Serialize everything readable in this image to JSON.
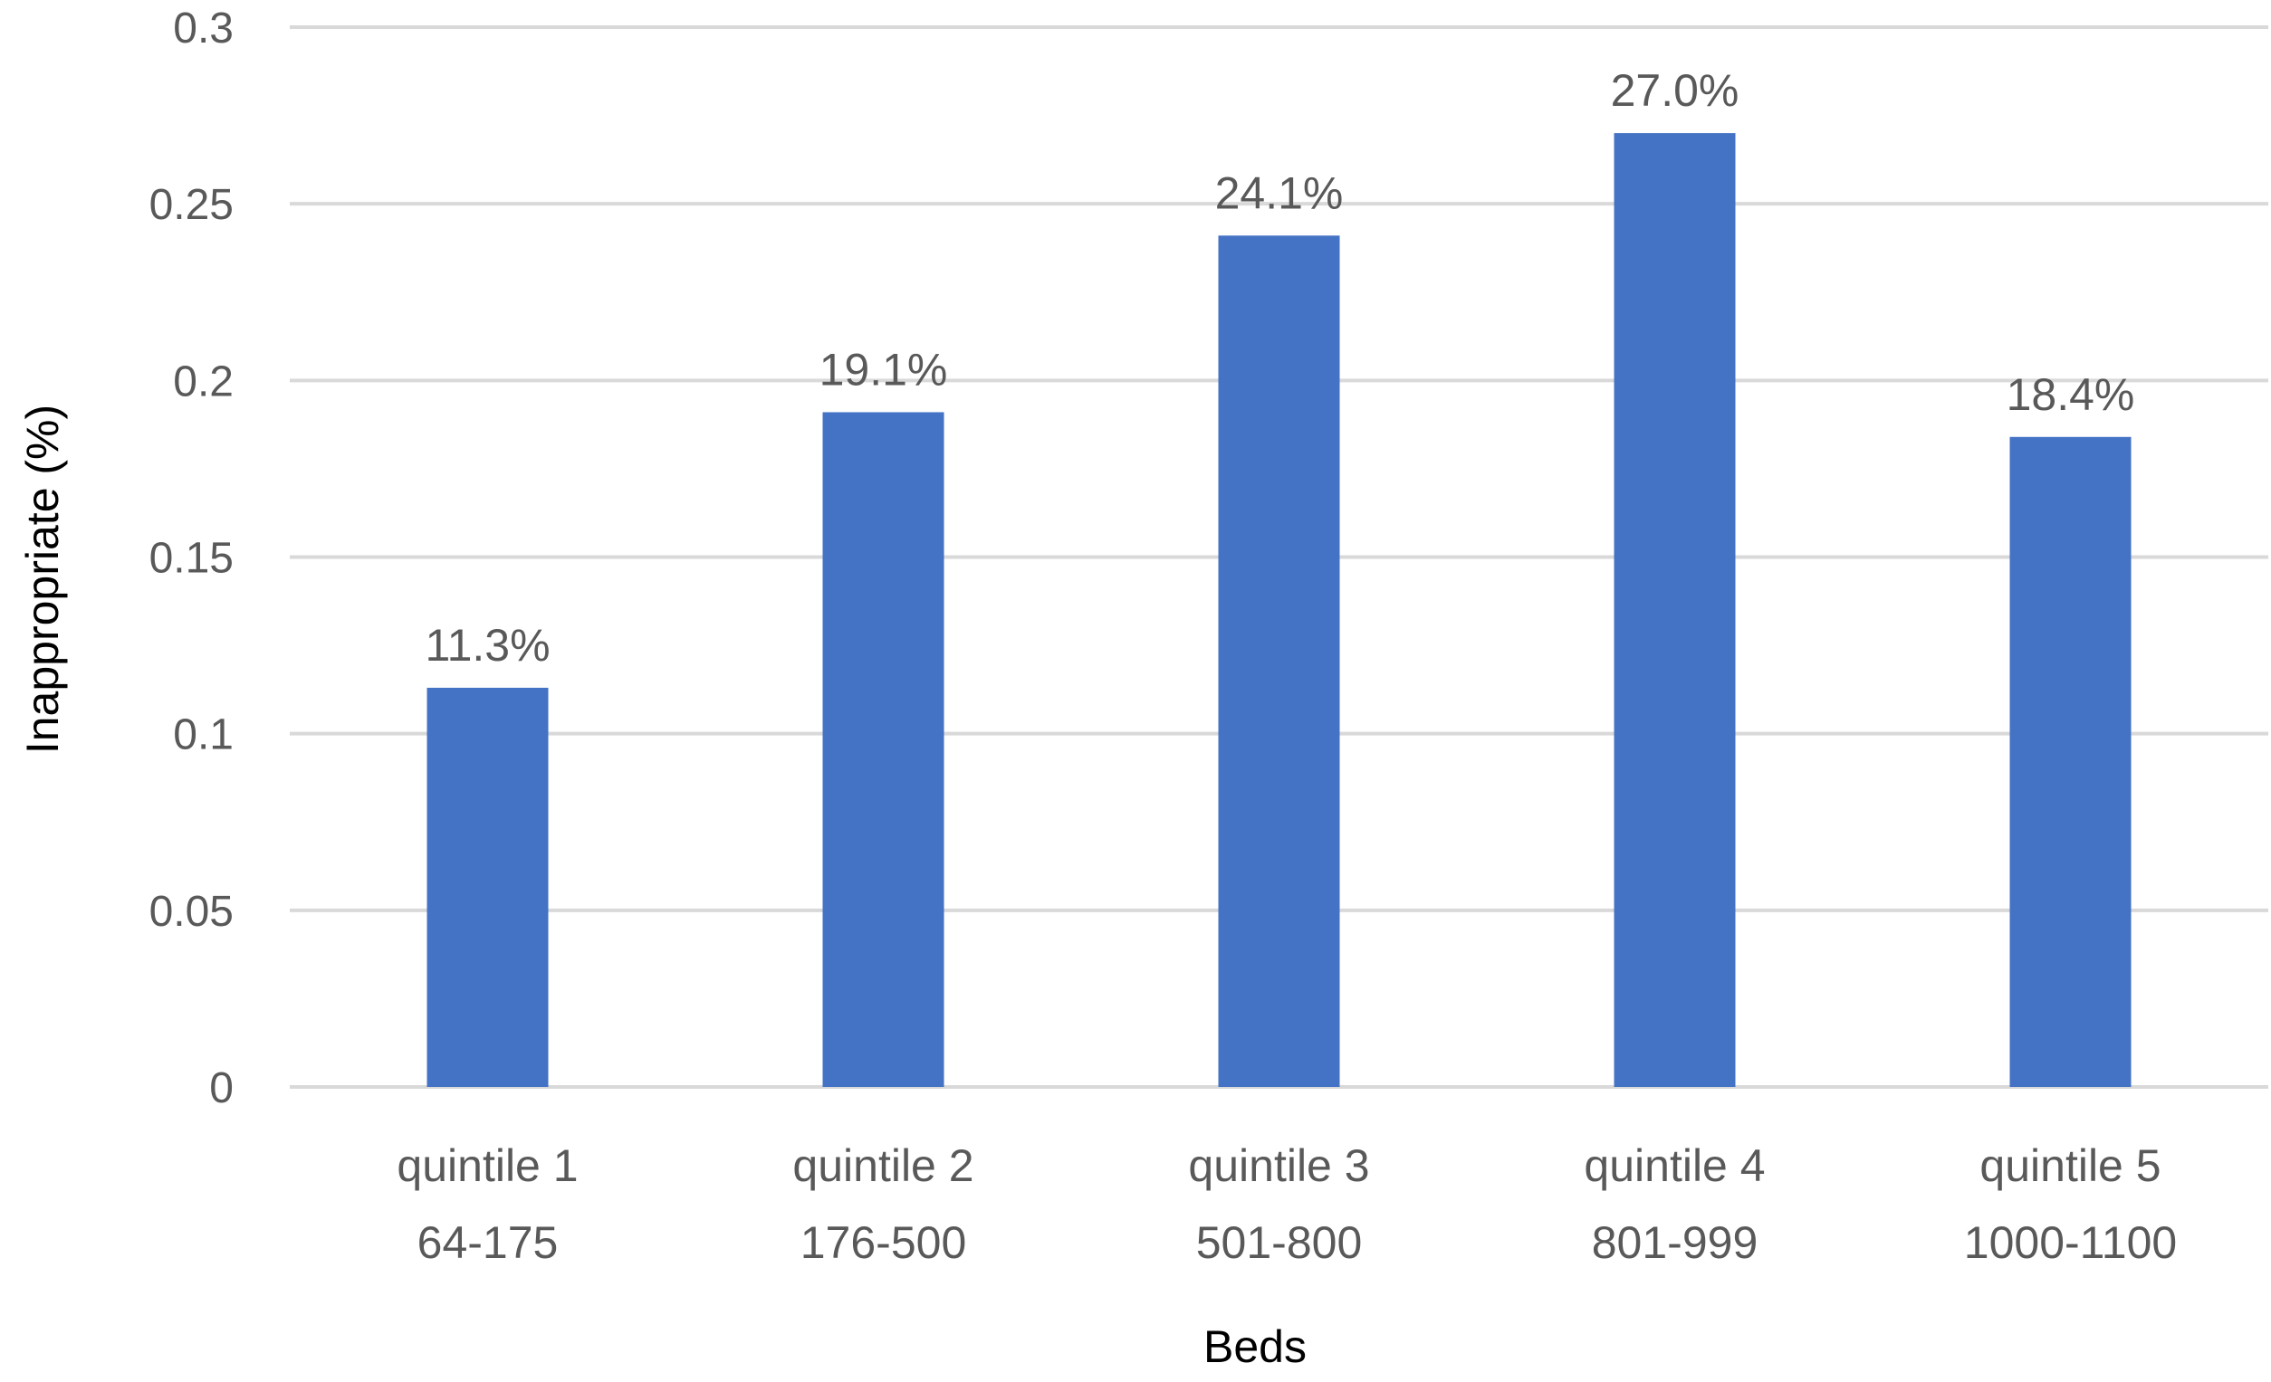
{
  "chart_data": {
    "type": "bar",
    "title": "",
    "xlabel": "Beds",
    "ylabel": "Inappropriate  (%)",
    "ylim": [
      0,
      0.3
    ],
    "yticks": [
      "0",
      "0.05",
      "0.1",
      "0.15",
      "0.2",
      "0.25",
      "0.3"
    ],
    "grid": true,
    "categories": [
      [
        "quintile 1",
        "64-175"
      ],
      [
        "quintile 2",
        "176-500"
      ],
      [
        "quintile 3",
        "501-800"
      ],
      [
        "quintile 4",
        "801-999"
      ],
      [
        "quintile 5",
        "1000-1100"
      ]
    ],
    "values": [
      0.113,
      0.191,
      0.241,
      0.27,
      0.184
    ],
    "data_labels": [
      "11.3%",
      "19.1%",
      "24.1%",
      "27.0%",
      "18.4%"
    ],
    "bar_color": "#4472C4",
    "grid_color": "#D9D9D9"
  }
}
